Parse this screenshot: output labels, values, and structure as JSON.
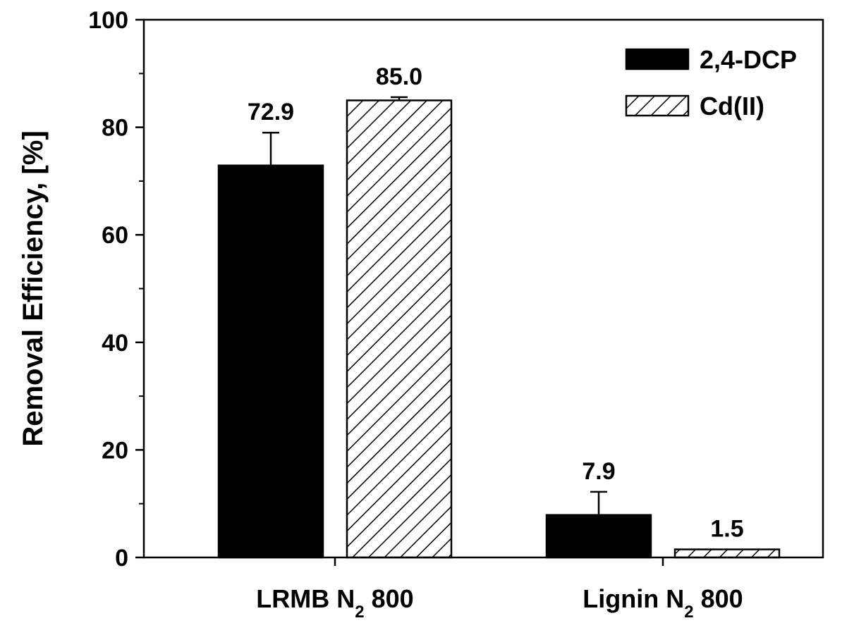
{
  "chart_data": {
    "type": "bar",
    "title": "",
    "xlabel": "",
    "ylabel": "Removal Efficiency, [%]",
    "ylim": [
      0,
      100
    ],
    "yticks": [
      0,
      20,
      40,
      60,
      80,
      100
    ],
    "ytick_labels": [
      "0",
      "20",
      "40",
      "60",
      "80",
      "100"
    ],
    "categories": [
      "LRMB N2 800",
      "Lignin N2 800"
    ],
    "category_labels": [
      {
        "main": "LRMB N",
        "sub": "2",
        "tail": " 800"
      },
      {
        "main": "Lignin N",
        "sub": "2",
        "tail": " 800"
      }
    ],
    "series": [
      {
        "name": "2,4-DCP",
        "values": [
          72.9,
          7.9
        ],
        "errors": [
          6.1,
          4.3
        ],
        "value_labels": [
          "72.9",
          "7.9"
        ],
        "fill": "solid"
      },
      {
        "name": "Cd(II)",
        "values": [
          85.0,
          1.5
        ],
        "errors": [
          0.6,
          0.0
        ],
        "value_labels": [
          "85.0",
          "1.5"
        ],
        "fill": "hatched"
      }
    ],
    "legend_position": "top-right",
    "grid": false,
    "colors": {
      "bar_fill": "#000000",
      "hatch": "#000000",
      "background": "#ffffff"
    }
  }
}
